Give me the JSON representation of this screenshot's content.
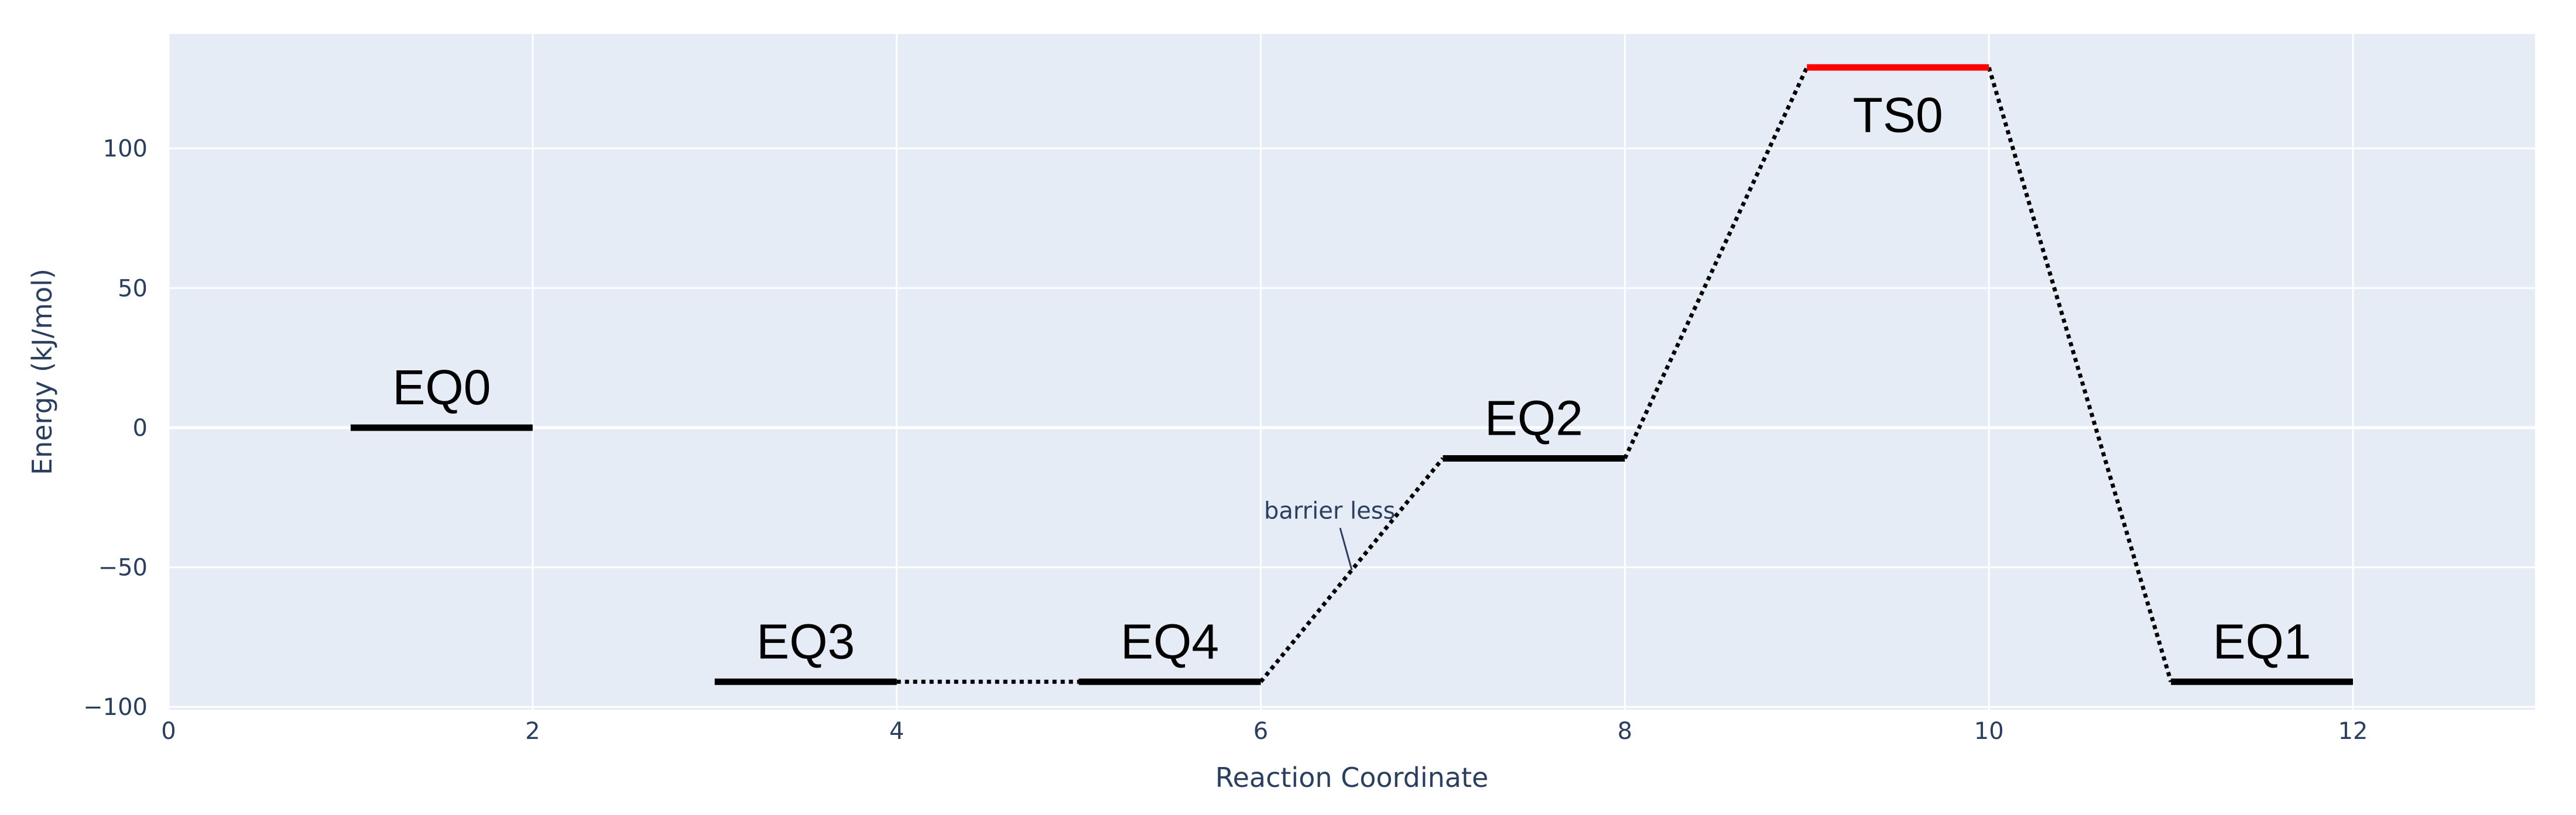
{
  "chart_data": {
    "type": "line",
    "title": "",
    "xlabel": "Reaction Coordinate",
    "ylabel": "Energy (kJ/mol)",
    "xlim": [
      0,
      13
    ],
    "ylim": [
      -101,
      141
    ],
    "x_ticks": [
      0,
      2,
      4,
      6,
      8,
      10,
      12
    ],
    "y_ticks": [
      -100,
      -50,
      0,
      50,
      100
    ],
    "grid": true,
    "colors": {
      "plot_bg": "#e5ecf6",
      "grid": "#ffffff",
      "level": "#000000",
      "transition_state": "#ff0000",
      "connector": "#000000",
      "axis_text": "#2a3f5f"
    },
    "levels": [
      {
        "name": "EQ0",
        "x0": 1,
        "x1": 2,
        "energy": 0,
        "type": "equilibrium"
      },
      {
        "name": "EQ3",
        "x0": 3,
        "x1": 4,
        "energy": -91,
        "type": "equilibrium"
      },
      {
        "name": "EQ4",
        "x0": 5,
        "x1": 6,
        "energy": -91,
        "type": "equilibrium"
      },
      {
        "name": "EQ2",
        "x0": 7,
        "x1": 8,
        "energy": -11,
        "type": "equilibrium"
      },
      {
        "name": "TS0",
        "x0": 9,
        "x1": 10,
        "energy": 129,
        "type": "transition"
      },
      {
        "name": "EQ1",
        "x0": 11,
        "x1": 12,
        "energy": -91,
        "type": "equilibrium"
      }
    ],
    "connections": [
      {
        "from": "EQ3",
        "to": "EQ4"
      },
      {
        "from": "EQ4",
        "to": "EQ2"
      },
      {
        "from": "EQ2",
        "to": "TS0"
      },
      {
        "from": "TS0",
        "to": "EQ1"
      }
    ],
    "annotations": [
      {
        "text": "barrier less",
        "x": 6.5,
        "y": -51
      }
    ]
  }
}
